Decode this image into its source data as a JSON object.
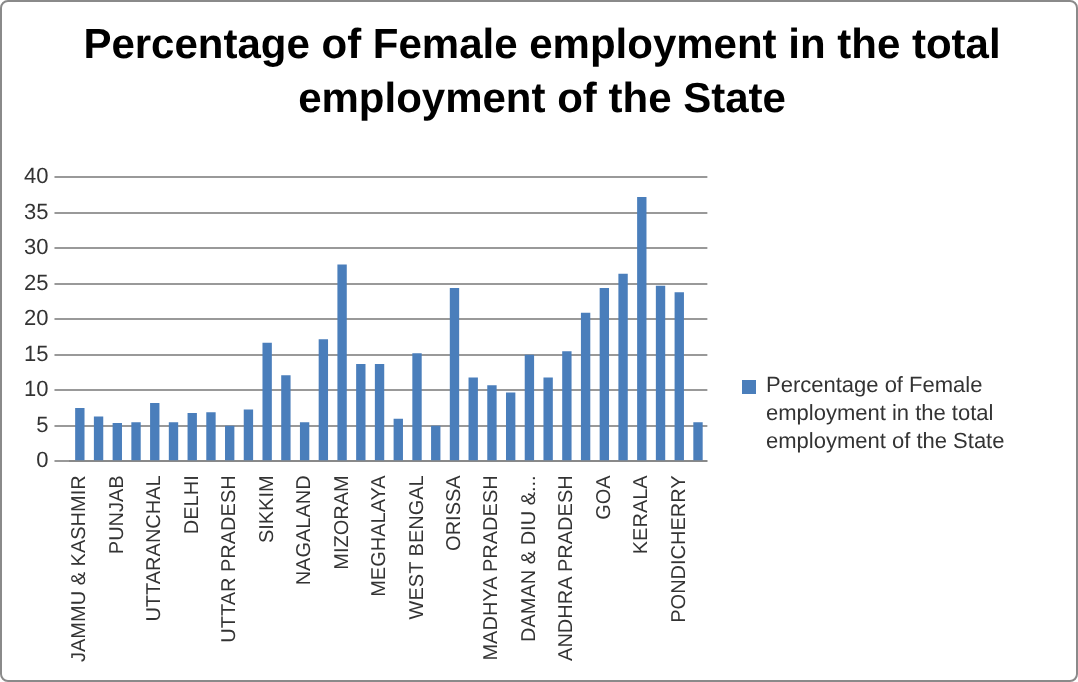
{
  "chart_data": {
    "type": "bar",
    "title": "Percentage of Female employment in the total employment of the State",
    "categories": [
      "JAMMU & KASHMIR",
      null,
      "PUNJAB",
      null,
      "UTTARANCHAL",
      null,
      "DELHI",
      null,
      "UTTAR PRADESH",
      null,
      "SIKKIM",
      null,
      "NAGALAND",
      null,
      "MIZORAM",
      null,
      "MEGHALAYA",
      null,
      "WEST BENGAL",
      null,
      "ORISSA",
      null,
      "MADHYA PRADESH",
      null,
      "DAMAN & DIU &...",
      null,
      "ANDHRA PRADESH",
      null,
      "GOA",
      null,
      "KERALA",
      null,
      "PONDICHERRY",
      null
    ],
    "series": [
      {
        "name": "Percentage of Female employment in the total employment of the State",
        "color": "#4a7ebb",
        "values": [
          7.5,
          6.3,
          5.4,
          5.5,
          8.2,
          5.5,
          6.8,
          6.9,
          5.0,
          7.3,
          16.7,
          12.1,
          5.5,
          17.2,
          27.7,
          13.7,
          13.7,
          6.0,
          15.2,
          5.0,
          24.4,
          11.8,
          10.7,
          9.7,
          15.0,
          11.8,
          15.5,
          20.9,
          24.4,
          26.4,
          37.2,
          24.7,
          23.8,
          5.5
        ]
      }
    ],
    "ylim": [
      0,
      40
    ],
    "yticks": [
      0,
      5,
      10,
      15,
      20,
      25,
      30,
      35,
      40
    ],
    "grid": "y",
    "legend": "right"
  }
}
